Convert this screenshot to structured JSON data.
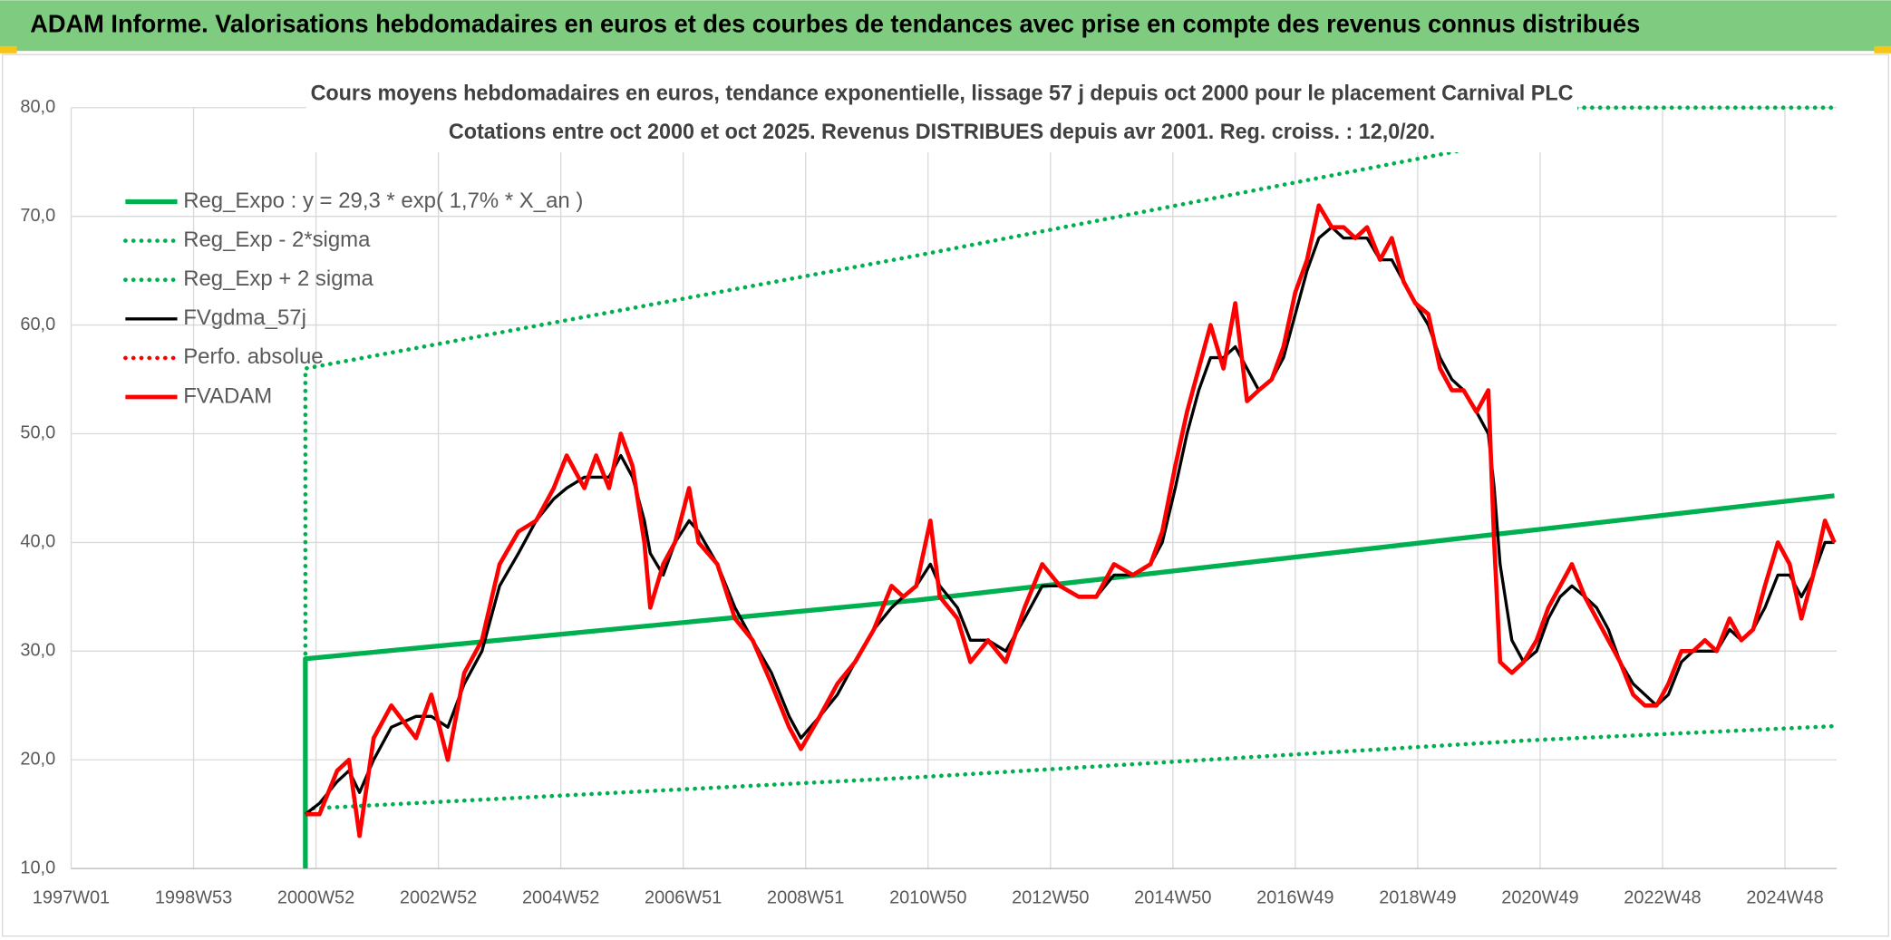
{
  "header": {
    "title": "ADAM Informe. Valorisations hebdomadaires en euros et des courbes de tendances avec prise en compte des revenus connus distribués"
  },
  "chart_data": {
    "type": "line",
    "title": "Cours moyens hebdomadaires en euros, tendance exponentielle, lissage 57 j depuis oct 2000 pour le placement Carnival PLC",
    "subtitle": "Cotations entre oct 2000 et oct 2025. Revenus DISTRIBUES depuis avr 2001. Reg. croiss. : 12,0/20.",
    "xlim": [
      0,
      1500
    ],
    "xticks": [
      {
        "value": 0,
        "label": "1997W01"
      },
      {
        "value": 104,
        "label": "1998W53"
      },
      {
        "value": 208,
        "label": "2000W52"
      },
      {
        "value": 312,
        "label": "2002W52"
      },
      {
        "value": 416,
        "label": "2004W52"
      },
      {
        "value": 520,
        "label": "2006W51"
      },
      {
        "value": 624,
        "label": "2008W51"
      },
      {
        "value": 728,
        "label": "2010W50"
      },
      {
        "value": 832,
        "label": "2012W50"
      },
      {
        "value": 936,
        "label": "2014W50"
      },
      {
        "value": 1040,
        "label": "2016W49"
      },
      {
        "value": 1144,
        "label": "2018W49"
      },
      {
        "value": 1248,
        "label": "2020W49"
      },
      {
        "value": 1352,
        "label": "2022W48"
      },
      {
        "value": 1456,
        "label": "2024W48"
      }
    ],
    "ylim": [
      10,
      80
    ],
    "yticks": [
      {
        "value": 10,
        "label": "10,0"
      },
      {
        "value": 20,
        "label": "20,0"
      },
      {
        "value": 30,
        "label": "30,0"
      },
      {
        "value": 40,
        "label": "40,0"
      },
      {
        "value": 50,
        "label": "50,0"
      },
      {
        "value": 60,
        "label": "60,0"
      },
      {
        "value": 70,
        "label": "70,0"
      },
      {
        "value": 80,
        "label": "80,0"
      }
    ],
    "grid": true,
    "legend": "top-left",
    "series": [
      {
        "name": "Reg_Expo : y = 29,3 * exp( 1,7% *  X_an )",
        "color": "#00b050",
        "style": "solid",
        "x": [
          199,
          199,
          719,
          1239,
          1498
        ],
        "values": [
          10,
          29.3,
          34.7,
          41.1,
          44.3
        ]
      },
      {
        "name": "Reg_Exp - 2*sigma",
        "color": "#00b050",
        "style": "dotted",
        "x": [
          199,
          719,
          1239,
          1498
        ],
        "values": [
          15.5,
          18.4,
          21.8,
          23.1
        ]
      },
      {
        "name": "Reg_Exp + 2 sigma",
        "color": "#00b050",
        "style": "dotted",
        "x": [
          199,
          199,
          719,
          1178,
          1280,
          1498
        ],
        "values": [
          10,
          56,
          66.4,
          76,
          80,
          80
        ]
      },
      {
        "name": "FVgdma_57j",
        "color": "#000000",
        "style": "solid",
        "x": [
          199,
          211,
          226,
          236,
          245,
          257,
          272,
          293,
          306,
          320,
          334,
          349,
          364,
          380,
          395,
          410,
          421,
          436,
          446,
          457,
          467,
          477,
          487,
          492,
          503,
          513,
          525,
          533,
          549,
          564,
          579,
          595,
          610,
          620,
          636,
          651,
          666,
          682,
          697,
          707,
          718,
          730,
          738,
          753,
          764,
          779,
          794,
          810,
          825,
          840,
          856,
          871,
          886,
          902,
          917,
          927,
          938,
          948,
          958,
          968,
          979,
          989,
          999,
          1009,
          1020,
          1030,
          1040,
          1050,
          1060,
          1071,
          1081,
          1091,
          1101,
          1112,
          1122,
          1132,
          1142,
          1153,
          1163,
          1173,
          1183,
          1194,
          1204,
          1209,
          1214,
          1224,
          1234,
          1245,
          1255,
          1265,
          1275,
          1286,
          1296,
          1306,
          1316,
          1327,
          1337,
          1347,
          1357,
          1368,
          1378,
          1388,
          1398,
          1409,
          1419,
          1429,
          1439,
          1450,
          1460,
          1470,
          1480,
          1490,
          1498
        ],
        "values": [
          15,
          16,
          18,
          19,
          17,
          20,
          23,
          24,
          24,
          23,
          27,
          30,
          36,
          39,
          42,
          44,
          45,
          46,
          46,
          46,
          48,
          46,
          42,
          39,
          37,
          40,
          42,
          41,
          38,
          34,
          31,
          28,
          24,
          22,
          24,
          26,
          29,
          32,
          34,
          35,
          36,
          38,
          36,
          34,
          31,
          31,
          30,
          33,
          36,
          36,
          35,
          35,
          37,
          37,
          38,
          40,
          45,
          50,
          54,
          57,
          57,
          58,
          56,
          54,
          55,
          57,
          61,
          65,
          68,
          69,
          68,
          68,
          68,
          66,
          66,
          64,
          62,
          60,
          57,
          55,
          54,
          52,
          50,
          45,
          38,
          31,
          29,
          30,
          33,
          35,
          36,
          35,
          34,
          32,
          29,
          27,
          26,
          25,
          26,
          29,
          30,
          30,
          30,
          32,
          31,
          32,
          34,
          37,
          37,
          35,
          37,
          40,
          40
        ]
      },
      {
        "name": "Perfo. absolue",
        "color": "#ff0000",
        "style": "dotted"
      },
      {
        "name": "FVADAM",
        "color": "#ff0000",
        "style": "solid",
        "x": [
          199,
          211,
          226,
          236,
          245,
          257,
          272,
          293,
          306,
          320,
          334,
          349,
          364,
          380,
          395,
          410,
          421,
          436,
          446,
          457,
          467,
          477,
          487,
          492,
          503,
          513,
          525,
          533,
          549,
          564,
          579,
          595,
          610,
          620,
          636,
          651,
          666,
          682,
          697,
          707,
          718,
          730,
          738,
          753,
          764,
          779,
          794,
          810,
          825,
          840,
          856,
          871,
          886,
          902,
          917,
          927,
          938,
          948,
          958,
          968,
          979,
          989,
          999,
          1009,
          1020,
          1030,
          1040,
          1050,
          1060,
          1071,
          1081,
          1091,
          1101,
          1112,
          1122,
          1132,
          1142,
          1153,
          1163,
          1173,
          1183,
          1194,
          1204,
          1209,
          1214,
          1224,
          1234,
          1245,
          1255,
          1265,
          1275,
          1286,
          1296,
          1306,
          1316,
          1327,
          1337,
          1347,
          1357,
          1368,
          1378,
          1388,
          1398,
          1409,
          1419,
          1429,
          1439,
          1450,
          1460,
          1470,
          1480,
          1490,
          1498
        ],
        "values": [
          15,
          15,
          19,
          20,
          13,
          22,
          25,
          22,
          26,
          20,
          28,
          31,
          38,
          41,
          42,
          45,
          48,
          45,
          48,
          45,
          50,
          47,
          40,
          34,
          38,
          40,
          45,
          40,
          38,
          33,
          31,
          27,
          23,
          21,
          24,
          27,
          29,
          32,
          36,
          35,
          36,
          42,
          35,
          33,
          29,
          31,
          29,
          34,
          38,
          36,
          35,
          35,
          38,
          37,
          38,
          41,
          47,
          52,
          56,
          60,
          56,
          62,
          53,
          54,
          55,
          58,
          63,
          66,
          71,
          69,
          69,
          68,
          69,
          66,
          68,
          64,
          62,
          61,
          56,
          54,
          54,
          52,
          54,
          40,
          29,
          28,
          29,
          31,
          34,
          36,
          38,
          35,
          33,
          31,
          29,
          26,
          25,
          25,
          27,
          30,
          30,
          31,
          30,
          33,
          31,
          32,
          36,
          40,
          38,
          33,
          37,
          42,
          40
        ]
      }
    ]
  }
}
